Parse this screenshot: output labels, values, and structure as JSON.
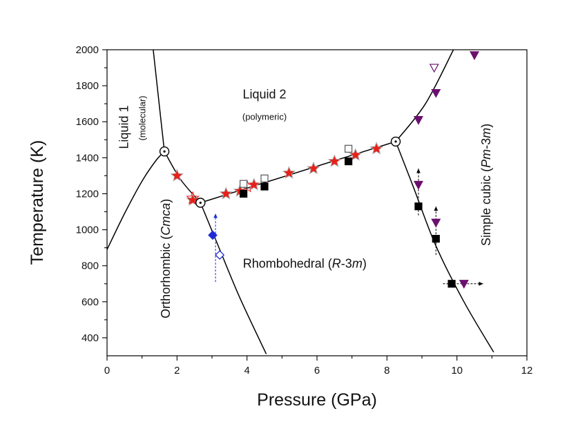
{
  "chart_data": {
    "type": "scatter",
    "title": "",
    "xlabel": "Pressure (GPa)",
    "ylabel": "Temperature (K)",
    "xlim": [
      0,
      12
    ],
    "ylim": [
      300,
      2000
    ],
    "x_ticks": [
      0,
      2,
      4,
      6,
      8,
      10,
      12
    ],
    "x_tick_labels": [
      "0",
      "2",
      "4",
      "6",
      "8",
      "10",
      "12"
    ],
    "y_ticks": [
      400,
      600,
      800,
      1000,
      1200,
      1400,
      1600,
      1800,
      2000
    ],
    "y_tick_labels": [
      "400",
      "600",
      "800",
      "1000",
      "1200",
      "1400",
      "1600",
      "1800",
      "2000"
    ],
    "grid": false,
    "legend": "none",
    "regions": [
      {
        "id": "liquid1",
        "parts": [
          {
            "text": "Liquid 1",
            "italic": false
          }
        ],
        "x": 0.6,
        "y": 1570,
        "rotate": -90,
        "size": "main"
      },
      {
        "id": "liquid1-sub",
        "parts": [
          {
            "text": "(molecular)",
            "italic": false
          }
        ],
        "x": 1.1,
        "y": 1620,
        "rotate": -90,
        "size": "sub"
      },
      {
        "id": "liquid2",
        "parts": [
          {
            "text": "Liquid 2",
            "italic": false
          }
        ],
        "x": 4.5,
        "y": 1730,
        "rotate": 0,
        "size": "main"
      },
      {
        "id": "liquid2-sub",
        "parts": [
          {
            "text": "(polymeric)",
            "italic": false
          }
        ],
        "x": 4.5,
        "y": 1610,
        "rotate": 0,
        "size": "sub"
      },
      {
        "id": "orthorhombic",
        "parts": [
          {
            "text": "Orthorhombic (",
            "italic": false
          },
          {
            "text": "Cmca",
            "italic": true
          },
          {
            "text": ")",
            "italic": false
          }
        ],
        "x": 1.8,
        "y": 840,
        "rotate": -90,
        "size": "main"
      },
      {
        "id": "rhombohedral",
        "parts": [
          {
            "text": "Rhombohedral (",
            "italic": false
          },
          {
            "text": "R",
            "italic": true
          },
          {
            "text": "-3",
            "italic": false
          },
          {
            "text": "m",
            "italic": true
          },
          {
            "text": ")",
            "italic": false
          }
        ],
        "x": 5.65,
        "y": 790,
        "rotate": 0,
        "size": "main"
      },
      {
        "id": "simple-cubic",
        "parts": [
          {
            "text": "Simple cubic (",
            "italic": false
          },
          {
            "text": "Pm",
            "italic": true
          },
          {
            "text": "-3",
            "italic": false
          },
          {
            "text": "m",
            "italic": true
          },
          {
            "text": ")",
            "italic": false
          }
        ],
        "x": 10.95,
        "y": 1250,
        "rotate": -90,
        "size": "main"
      }
    ],
    "boundaries": [
      {
        "name": "liquid1-liquid2",
        "points": [
          [
            1.32,
            2000
          ],
          [
            1.5,
            1680
          ],
          [
            1.64,
            1435
          ]
        ]
      },
      {
        "name": "liquid1-orthorhombic",
        "points": [
          [
            0,
            890
          ],
          [
            0.5,
            1090
          ],
          [
            1.0,
            1270
          ],
          [
            1.4,
            1385
          ],
          [
            1.64,
            1435
          ]
        ]
      },
      {
        "name": "orthorhombic-liquid2",
        "points": [
          [
            1.64,
            1435
          ],
          [
            2.1,
            1280
          ],
          [
            2.67,
            1150
          ]
        ]
      },
      {
        "name": "orthorhombic-rhombohedral",
        "points": [
          [
            2.67,
            1150
          ],
          [
            3.2,
            900
          ],
          [
            3.8,
            620
          ],
          [
            4.55,
            310
          ]
        ]
      },
      {
        "name": "rhombohedral-liquid2",
        "points": [
          [
            2.67,
            1150
          ],
          [
            8.25,
            1490
          ]
        ]
      },
      {
        "name": "liquid2-simplecubic",
        "points": [
          [
            8.25,
            1490
          ],
          [
            9.1,
            1700
          ],
          [
            9.9,
            2000
          ]
        ]
      },
      {
        "name": "rhombohedral-simplecubic",
        "points": [
          [
            8.25,
            1490
          ],
          [
            8.75,
            1240
          ],
          [
            9.4,
            910
          ],
          [
            10.2,
            600
          ],
          [
            11.05,
            320
          ]
        ]
      }
    ],
    "triple_points": [
      [
        1.64,
        1435
      ],
      [
        2.67,
        1150
      ],
      [
        8.25,
        1490
      ]
    ],
    "series": [
      {
        "marker": "star",
        "color": "#e8201a",
        "edge": "#b0b0b0",
        "points": [
          [
            2.0,
            1300
          ],
          [
            2.45,
            1165
          ],
          [
            3.4,
            1200
          ],
          [
            3.8,
            1215
          ],
          [
            4.2,
            1250
          ],
          [
            5.2,
            1315
          ],
          [
            5.9,
            1340
          ],
          [
            6.5,
            1380
          ],
          [
            7.1,
            1415
          ],
          [
            7.7,
            1450
          ]
        ]
      },
      {
        "marker": "star-open",
        "color": "#e8201a",
        "edge": "#e8201a",
        "points": [
          [
            2.45,
            1175
          ],
          [
            4.0,
            1240
          ]
        ]
      },
      {
        "marker": "square-filled",
        "color": "#000000",
        "edge": "#000000",
        "points": [
          [
            3.9,
            1200
          ],
          [
            4.5,
            1240
          ],
          [
            6.9,
            1380
          ],
          [
            8.9,
            1130
          ],
          [
            9.4,
            950
          ],
          [
            9.85,
            700
          ]
        ]
      },
      {
        "marker": "square-open",
        "color": "#ffffff",
        "edge": "#555555",
        "points": [
          [
            3.9,
            1255
          ],
          [
            4.5,
            1285
          ],
          [
            6.9,
            1450
          ]
        ]
      },
      {
        "marker": "triangle-down",
        "color": "#6b0f6e",
        "edge": "#6b0f6e",
        "points": [
          [
            8.9,
            1610
          ],
          [
            9.4,
            1760
          ],
          [
            10.5,
            1970
          ],
          [
            8.9,
            1250
          ],
          [
            9.4,
            1040
          ],
          [
            10.2,
            700
          ]
        ]
      },
      {
        "marker": "triangle-down-open",
        "color": "#ffffff",
        "edge": "#6b0f6e",
        "points": [
          [
            9.35,
            1900
          ]
        ]
      },
      {
        "marker": "diamond",
        "color": "#1e2bd6",
        "edge": "#1e2bd6",
        "points": [
          [
            3.02,
            970
          ],
          [
            3.22,
            860
          ]
        ]
      },
      {
        "marker": "diamond-open",
        "color": "#ffffff",
        "edge": "#1e2bd6",
        "points": [
          [
            3.22,
            860
          ]
        ]
      }
    ],
    "arrows": [
      {
        "from": [
          8.9,
          1080
        ],
        "to": [
          8.9,
          1340
        ],
        "color": "#000000",
        "dashed": true
      },
      {
        "from": [
          9.4,
          860
        ],
        "to": [
          9.4,
          1130
        ],
        "color": "#000000",
        "dashed": true
      },
      {
        "from": [
          9.6,
          700
        ],
        "to": [
          10.75,
          700
        ],
        "color": "#000000",
        "dashed": true
      },
      {
        "from": [
          3.1,
          710
        ],
        "to": [
          3.1,
          1090
        ],
        "color": "#1e2bd6",
        "dashed": true
      }
    ]
  }
}
